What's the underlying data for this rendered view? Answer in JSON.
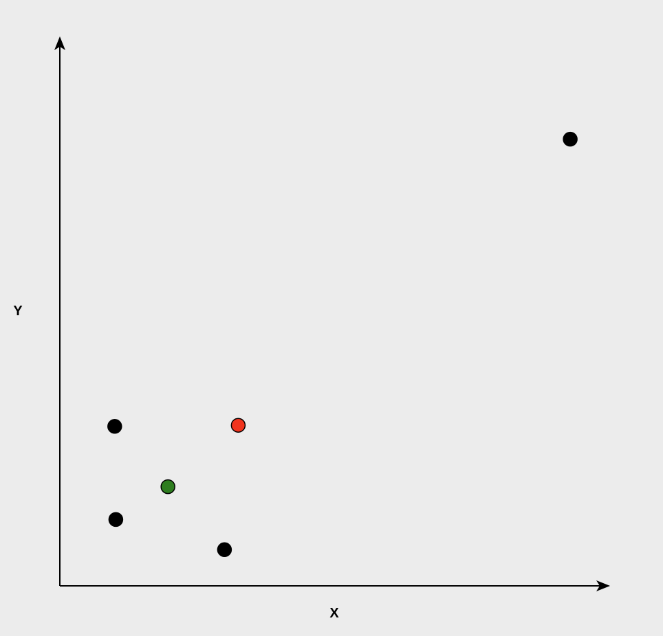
{
  "axes": {
    "x_label": "X",
    "y_label": "Y"
  },
  "colors": {
    "background": "#ececec",
    "axis": "#000000",
    "point_default": "#000000",
    "point_red": "#f0341e",
    "point_green": "#2e7d1f"
  },
  "chart_data": {
    "type": "scatter",
    "xlabel": "X",
    "ylabel": "Y",
    "xlim": [
      0,
      100
    ],
    "ylim": [
      0,
      100
    ],
    "grid": false,
    "points": [
      {
        "x": 93,
        "y": 81.5,
        "color": "#000000"
      },
      {
        "x": 10,
        "y": 29.1,
        "color": "#000000"
      },
      {
        "x": 32.5,
        "y": 29.3,
        "color": "#f0341e"
      },
      {
        "x": 19.7,
        "y": 18.1,
        "color": "#2e7d1f"
      },
      {
        "x": 10.2,
        "y": 12.1,
        "color": "#000000"
      },
      {
        "x": 30,
        "y": 6.6,
        "color": "#000000"
      }
    ]
  }
}
